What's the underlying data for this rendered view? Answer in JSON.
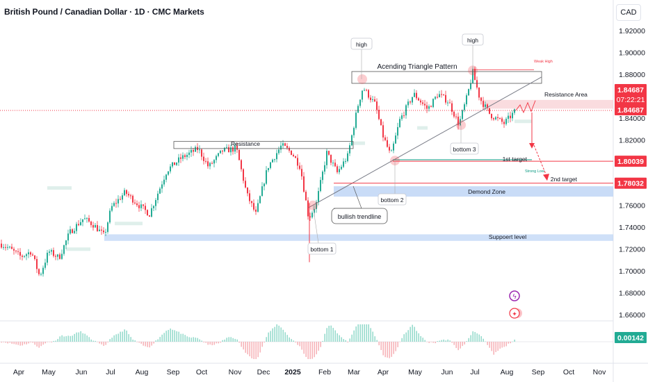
{
  "header": {
    "title": "British Pound / Canadian Dollar · 1D · CMC Markets",
    "currency": "CAD"
  },
  "chart_data": {
    "type": "candlestick",
    "price_ticks": [
      "1.92000",
      "1.90000",
      "1.88000",
      "1.86000",
      "1.84000",
      "1.82000",
      "1.80000",
      "1.78000",
      "1.76000",
      "1.74000",
      "1.72000",
      "1.70000",
      "1.68000",
      "1.66000"
    ],
    "time_ticks": [
      "Apr",
      "May",
      "Jun",
      "Jul",
      "Aug",
      "Sep",
      "Oct",
      "Nov",
      "Dec",
      "2025",
      "Feb",
      "Mar",
      "Apr",
      "May",
      "Jun",
      "Jul",
      "Aug",
      "Sep",
      "Oct",
      "Nov"
    ],
    "price_badges": [
      {
        "label": "1.84687",
        "sub": "07:22:21",
        "color": "#f23645",
        "value": 1.84687
      },
      {
        "label": "1.84687",
        "color": "#f23645",
        "value": 1.84687
      },
      {
        "label": "1.80039",
        "color": "#f23645",
        "value": 1.80039
      },
      {
        "label": "1.78032",
        "color": "#f23645",
        "value": 1.78032
      },
      {
        "label": "0.00142",
        "color": "#22ab94"
      }
    ],
    "annotations": {
      "pattern": "Acending Triangle Pattern",
      "high_1": "high",
      "high_2": "high",
      "weak_high": "Weak High",
      "resistance_area": "Resistance Area",
      "resistance": "Resistance",
      "first_target": "1st target",
      "strong_low": "Strong Low",
      "second_target": "2nd target",
      "demand_zone": "Demond Zone",
      "support_level": "Suppoert level",
      "bottom_1": "bottom 1",
      "bottom_2": "bottom 2",
      "bottom_3": "bottom 3",
      "trendline": "bullish trendline"
    },
    "colors": {
      "up": "#22ab94",
      "down": "#f23645",
      "zone_blue": "#bbd3f5",
      "zone_red": "#f7c5c9"
    }
  }
}
